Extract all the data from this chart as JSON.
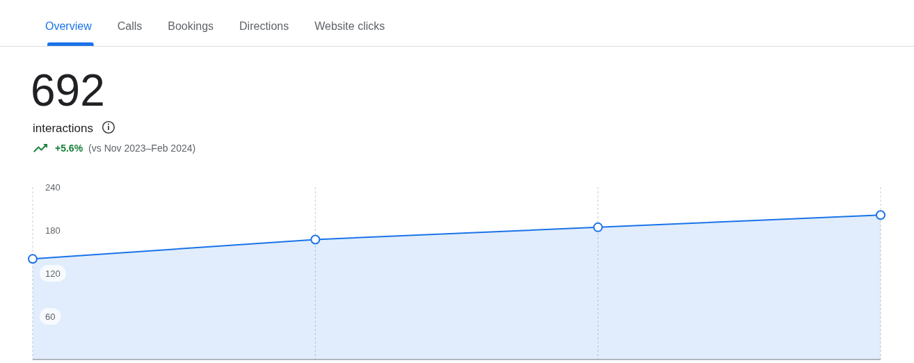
{
  "chart_data": {
    "type": "area",
    "title": "692",
    "subtitle": "interactions",
    "annotations": [
      "Overview",
      "Calls",
      "Bookings",
      "Directions",
      "Website clicks",
      "+5.6%",
      "(vs Nov 2023–Feb 2024)"
    ],
    "categories": [
      null,
      null,
      null,
      null
    ],
    "series": [
      {
        "color": "#1a73e8",
        "values": [
          140,
          167,
          184,
          201
        ]
      }
    ],
    "ylim": [
      0,
      240
    ],
    "yticks": [
      60,
      120,
      180,
      240
    ],
    "grid": "x",
    "marker": "circle",
    "tick_labels": "y"
  }
}
